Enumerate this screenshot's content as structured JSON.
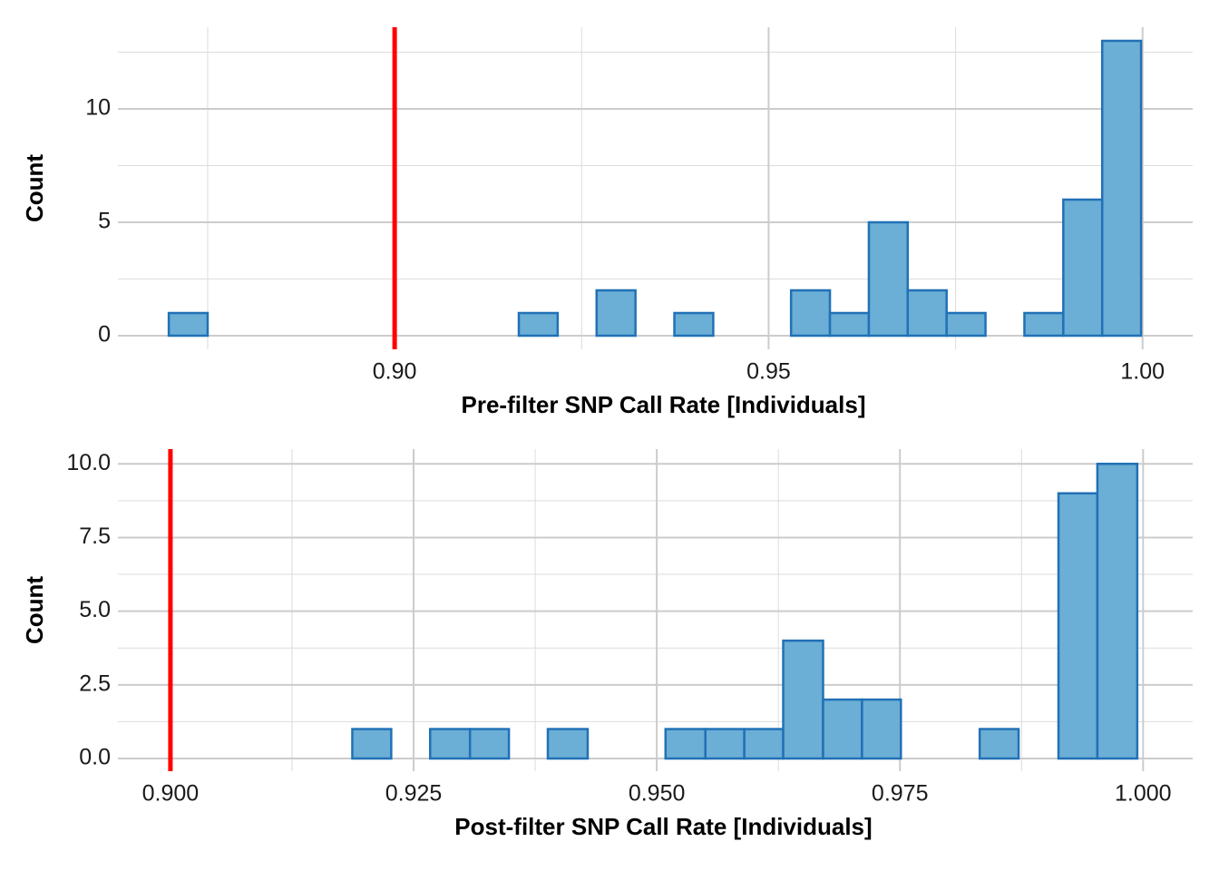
{
  "chart_data": [
    {
      "type": "histogram",
      "xlabel": "Pre-filter SNP Call Rate [Individuals]",
      "ylabel": "Count",
      "bins": [
        0.8698,
        0.875,
        0.8802,
        0.8854,
        0.8906,
        0.8958,
        0.901,
        0.9062,
        0.9114,
        0.9166,
        0.9218,
        0.927,
        0.9322,
        0.9374,
        0.9426,
        0.9478,
        0.953,
        0.9582,
        0.9634,
        0.9686,
        0.9738,
        0.979,
        0.9842,
        0.9894,
        0.9946,
        0.9998
      ],
      "values": [
        1,
        0,
        0,
        0,
        0,
        0,
        0,
        0,
        0,
        1,
        0,
        2,
        0,
        1,
        0,
        0,
        2,
        1,
        5,
        2,
        1,
        0,
        1,
        6,
        13
      ],
      "color": "#6baed6",
      "edge_color": "#2171b5",
      "vline": 0.9,
      "vline_color": "#ff0000",
      "xlim": [
        0.863,
        1.0067
      ],
      "ylim": [
        -0.6,
        13.6
      ],
      "xticks": [
        {
          "value": 0.9,
          "label": "0.90"
        },
        {
          "value": 0.95,
          "label": "0.95"
        },
        {
          "value": 1.0,
          "label": "1.00"
        }
      ],
      "yticks": [
        0,
        5,
        10
      ],
      "grid": true
    },
    {
      "type": "histogram",
      "xlabel": "Post-filter SNP Call Rate [Individuals]",
      "ylabel": "Count",
      "bins": [
        0.8985,
        0.9025,
        0.9066,
        0.9106,
        0.9146,
        0.9187,
        0.9227,
        0.9267,
        0.9308,
        0.9348,
        0.9388,
        0.9429,
        0.9469,
        0.9509,
        0.955,
        0.959,
        0.963,
        0.9671,
        0.9711,
        0.9751,
        0.9792,
        0.9832,
        0.9872,
        0.9913,
        0.9953,
        0.9994
      ],
      "values": [
        0,
        0,
        0,
        0,
        0,
        1,
        0,
        1,
        1,
        0,
        1,
        0,
        0,
        1,
        1,
        1,
        4,
        2,
        2,
        0,
        0,
        1,
        0,
        9,
        10
      ],
      "color": "#6baed6",
      "edge_color": "#2171b5",
      "vline": 0.9,
      "vline_color": "#ff0000",
      "xlim": [
        0.8946,
        1.0051
      ],
      "ylim": [
        -0.43,
        10.5
      ],
      "xticks": [
        {
          "value": 0.9,
          "label": "0.900"
        },
        {
          "value": 0.925,
          "label": "0.925"
        },
        {
          "value": 0.95,
          "label": "0.950"
        },
        {
          "value": 0.975,
          "label": "0.975"
        },
        {
          "value": 1.0,
          "label": "1.000"
        }
      ],
      "yticks": [
        {
          "value": 0,
          "label": "0.0"
        },
        {
          "value": 2.5,
          "label": "2.5"
        },
        {
          "value": 5,
          "label": "5.0"
        },
        {
          "value": 7.5,
          "label": "7.5"
        },
        {
          "value": 10,
          "label": "10.0"
        }
      ],
      "grid": true
    }
  ]
}
